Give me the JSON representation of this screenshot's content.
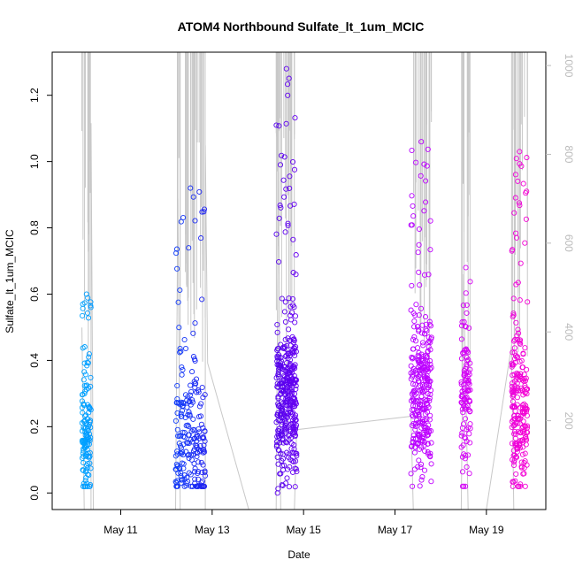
{
  "chart_data": {
    "type": "scatter",
    "title": "ATOM4 Northbound Sulfate_lt_1um_MCIC",
    "xlabel": "Date",
    "ylabel": "Sulfate_lt_1um_MCIC",
    "x_tick_labels": [
      "May 11",
      "May 13",
      "May 15",
      "May 17",
      "May 19"
    ],
    "x_tick_values": [
      11,
      13,
      15,
      17,
      19
    ],
    "xlim": [
      9.5,
      20.3
    ],
    "ylim": [
      -0.05,
      1.33
    ],
    "y_ticks": [
      0.0,
      0.2,
      0.4,
      0.6,
      0.8,
      1.0,
      1.2
    ],
    "y_tick_labels": [
      "0.0",
      "0.2",
      "0.4",
      "0.6",
      "0.8",
      "1.0",
      "1.2"
    ],
    "y2_label_ticks": [
      "200",
      "400",
      "600",
      "800",
      "1000"
    ],
    "y2_ticks": [
      200,
      400,
      600,
      800,
      1000
    ],
    "y2lim": [
      1030,
      0
    ],
    "point_style": "open circle",
    "color_gradient": [
      "#00c8ff",
      "#0050ff",
      "#3c00e6",
      "#9600ff",
      "#c800ff",
      "#ff00c8"
    ],
    "line_color": "#c8c8c8",
    "clusters": [
      {
        "x_start": 10.15,
        "x_end": 10.35,
        "y_low": 0.02,
        "y_high": 0.6,
        "y_center": 0.18,
        "count": 140
      },
      {
        "x_start": 12.2,
        "x_end": 12.85,
        "y_low": 0.02,
        "y_high": 0.92,
        "y_center": 0.15,
        "count": 220
      },
      {
        "x_start": 14.4,
        "x_end": 14.85,
        "y_low": 0.0,
        "y_high": 1.28,
        "y_center": 0.28,
        "count": 380
      },
      {
        "x_start": 17.35,
        "x_end": 17.8,
        "y_low": 0.02,
        "y_high": 1.06,
        "y_center": 0.3,
        "count": 290
      },
      {
        "x_start": 18.45,
        "x_end": 18.65,
        "y_low": 0.02,
        "y_high": 0.68,
        "y_center": 0.28,
        "count": 110
      },
      {
        "x_start": 19.55,
        "x_end": 19.9,
        "y_low": 0.02,
        "y_high": 1.03,
        "y_center": 0.25,
        "count": 230
      }
    ],
    "altitude_line": [
      [
        10.15,
        410
      ],
      [
        10.2,
        0
      ],
      [
        10.35,
        0
      ],
      [
        10.35,
        870
      ],
      [
        10.4,
        0
      ],
      [
        12.2,
        0
      ],
      [
        12.25,
        700
      ],
      [
        12.3,
        0
      ],
      [
        12.85,
        0
      ],
      [
        12.85,
        820
      ],
      [
        12.9,
        330
      ],
      [
        13.8,
        0
      ],
      [
        14.4,
        0
      ],
      [
        14.45,
        760
      ],
      [
        14.5,
        0
      ],
      [
        14.8,
        0
      ],
      [
        14.85,
        180
      ],
      [
        17.35,
        210
      ],
      [
        17.4,
        0
      ],
      [
        17.8,
        0
      ],
      [
        18.45,
        0
      ],
      [
        18.5,
        530
      ],
      [
        18.6,
        0
      ],
      [
        19.0,
        0
      ],
      [
        19.55,
        370
      ],
      [
        19.6,
        0
      ],
      [
        19.9,
        0
      ]
    ]
  }
}
